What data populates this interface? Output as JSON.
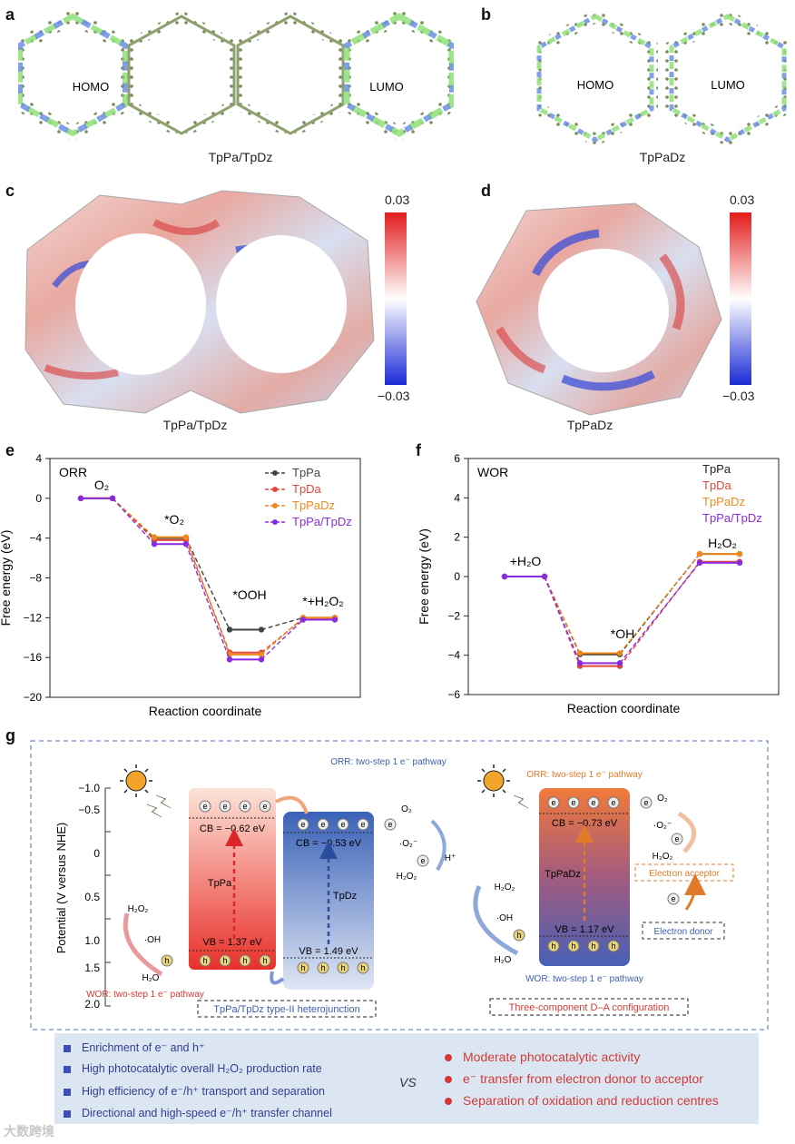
{
  "panels": {
    "a": {
      "letter": "a",
      "homo": "HOMO",
      "lumo": "LUMO",
      "caption": "TpPa/TpDz"
    },
    "b": {
      "letter": "b",
      "homo": "HOMO",
      "lumo": "LUMO",
      "caption": "TpPaDz"
    },
    "c": {
      "letter": "c",
      "caption": "TpPa/TpDz",
      "scale_max": "0.03",
      "scale_min": "−0.03"
    },
    "d": {
      "letter": "d",
      "caption": "TpPaDz",
      "scale_max": "0.03",
      "scale_min": "−0.03"
    },
    "e": {
      "letter": "e"
    },
    "f": {
      "letter": "f"
    },
    "g": {
      "letter": "g"
    }
  },
  "chart_data": [
    {
      "type": "line",
      "panel": "e",
      "label": "ORR",
      "xlabel": "Reaction coordinate",
      "ylabel": "Free energy (eV)",
      "ylim": [
        -20,
        4
      ],
      "yticks": [
        "4",
        "0",
        "−4",
        "−8",
        "−12",
        "−16",
        "−20"
      ],
      "states": [
        "O₂",
        "*O₂",
        "*OOH",
        "*+H₂O₂"
      ],
      "series": [
        {
          "name": "TpPa",
          "color": "#444444",
          "values": [
            0,
            -4.0,
            -13.2,
            -12.0
          ]
        },
        {
          "name": "TpDa",
          "color": "#e0473b",
          "values": [
            0,
            -4.2,
            -15.5,
            -12.1
          ]
        },
        {
          "name": "TpPaDz",
          "color": "#f08a1d",
          "values": [
            0,
            -3.9,
            -15.7,
            -12.0
          ]
        },
        {
          "name": "TpPa/TpDz",
          "color": "#8a2be2",
          "values": [
            0,
            -4.6,
            -16.2,
            -12.2
          ]
        }
      ]
    },
    {
      "type": "line",
      "panel": "f",
      "label": "WOR",
      "xlabel": "Reaction coordinate",
      "ylabel": "Free energy (eV)",
      "ylim": [
        -6,
        6
      ],
      "yticks": [
        "6",
        "4",
        "2",
        "0",
        "−2",
        "−4",
        "−6"
      ],
      "states": [
        "+H₂O",
        "*OH",
        "H₂O₂"
      ],
      "series": [
        {
          "name": "TpPa",
          "color": "#222222",
          "values": [
            0,
            -3.95,
            1.15
          ]
        },
        {
          "name": "TpDa",
          "color": "#e0473b",
          "values": [
            0,
            -4.55,
            0.75
          ]
        },
        {
          "name": "TpPaDz",
          "color": "#f08a1d",
          "values": [
            0,
            -3.9,
            1.15
          ]
        },
        {
          "name": "TpPa/TpDz",
          "color": "#8a2be2",
          "values": [
            0,
            -4.4,
            0.7
          ]
        }
      ]
    }
  ],
  "scheme": {
    "axis_label": "Potential (V versus NHE)",
    "ticks": [
      "−1.0",
      "−0.5",
      "0",
      "0.5",
      "1.0",
      "1.5",
      "2.0"
    ],
    "tppa": {
      "name": "TpPa",
      "cb": "CB = −0.62 eV",
      "vb": "VB = 1.37 eV"
    },
    "tpdz": {
      "name": "TpDz",
      "cb": "CB = −0.53 eV",
      "vb": "VB = 1.49 eV"
    },
    "tppadz": {
      "name": "TpPaDz",
      "cb": "CB = −0.73 eV",
      "vb": "VB = 1.17 eV"
    },
    "orr_left": "ORR: two-step 1 e⁻ pathway",
    "wor_left": "WOR: two-step 1 e⁻ pathway",
    "orr_right": "ORR: two-step 1 e⁻ pathway",
    "wor_right": "WOR: two-step 1 e⁻ pathway",
    "o2": "O₂",
    "o2rad": "·O₂⁻",
    "h2o2": "H₂O₂",
    "hplus": "H⁺",
    "oh": "·OH",
    "h2o": "H₂O",
    "e": "e",
    "h": "h",
    "hetero_caption": "TpPa/TpDz type-II heterojunction",
    "da_caption": "Three-component D–A configuration",
    "acceptor": "Electron acceptor",
    "donor": "Electron donor"
  },
  "comparison": {
    "left": [
      "Enrichment of e⁻ and h⁺",
      "High photocatalytic overall H₂O₂ production rate",
      "High efficiency of e⁻/h⁺ transport and separation",
      "Directional and high-speed e⁻/h⁺ transfer channel"
    ],
    "vs": "VS",
    "right": [
      "Moderate photocatalytic activity",
      "e⁻ transfer from electron donor to acceptor",
      "Separation of oxidation and reduction centres"
    ]
  },
  "watermark": "大数跨境",
  "colors": {
    "red": "#e0473b",
    "blue": "#3d5fb0",
    "orange": "#f08a1d",
    "purple": "#8a2be2"
  }
}
